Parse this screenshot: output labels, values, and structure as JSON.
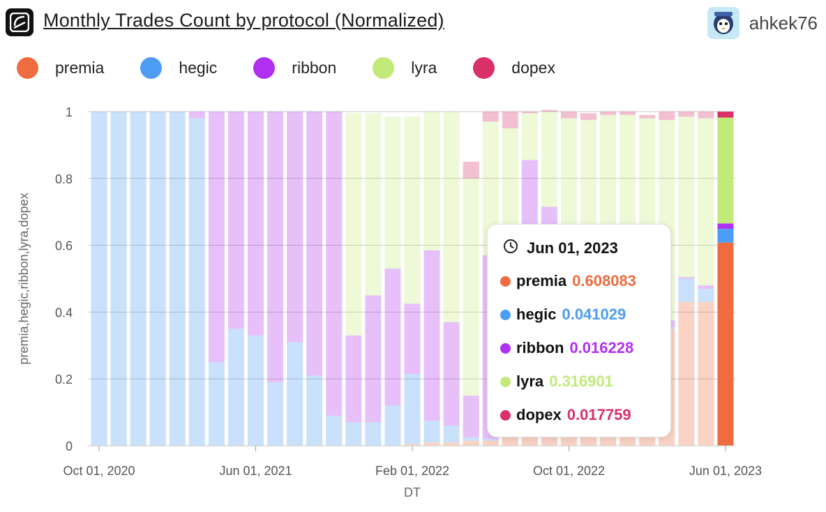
{
  "header": {
    "title": "Monthly Trades Count by protocol (Normalized)",
    "username": "ahkek76"
  },
  "icons": {
    "logo": "dune-logo-icon",
    "avatar": "user-avatar",
    "clock": "clock-icon"
  },
  "legend": [
    {
      "name": "premia",
      "color": "#ee6c40"
    },
    {
      "name": "hegic",
      "color": "#4c9df3"
    },
    {
      "name": "ribbon",
      "color": "#b12ff0"
    },
    {
      "name": "lyra",
      "color": "#c2ea7a"
    },
    {
      "name": "dopex",
      "color": "#d83067"
    }
  ],
  "tooltip": {
    "date": "Jun 01, 2023",
    "rows": [
      {
        "name": "premia",
        "value": "0.608083",
        "color": "#ee6c40"
      },
      {
        "name": "hegic",
        "value": "0.041029",
        "color": "#4c9df3"
      },
      {
        "name": "ribbon",
        "value": "0.016228",
        "color": "#b12ff0"
      },
      {
        "name": "lyra",
        "value": "0.316901",
        "color": "#c2ea7a"
      },
      {
        "name": "dopex",
        "value": "0.017759",
        "color": "#d83067"
      }
    ]
  },
  "chart_data": {
    "type": "bar",
    "stacked": true,
    "normalized": true,
    "xlabel": "DT",
    "ylabel": "premia,hegic,ribbon,lyra,dopex",
    "ylim": [
      0,
      1
    ],
    "yticks": [
      "0",
      "0.2",
      "0.4",
      "0.6",
      "0.8",
      "1"
    ],
    "xticks": [
      {
        "label": "Oct 01, 2020",
        "index": 0
      },
      {
        "label": "Jun 01, 2021",
        "index": 8
      },
      {
        "label": "Feb 01, 2022",
        "index": 16
      },
      {
        "label": "Oct 01, 2022",
        "index": 24
      },
      {
        "label": "Jun 01, 2023",
        "index": 32
      }
    ],
    "highlight_index": 32,
    "categories": [
      "2020-10",
      "2020-11",
      "2020-12",
      "2021-01",
      "2021-02",
      "2021-03",
      "2021-04",
      "2021-05",
      "2021-06",
      "2021-07",
      "2021-08",
      "2021-09",
      "2021-10",
      "2021-11",
      "2021-12",
      "2022-01",
      "2022-02",
      "2022-03",
      "2022-04",
      "2022-05",
      "2022-06",
      "2022-07",
      "2022-08",
      "2022-09",
      "2022-10",
      "2022-11",
      "2022-12",
      "2023-01",
      "2023-02",
      "2023-03",
      "2023-04",
      "2023-05",
      "2023-06"
    ],
    "series": [
      {
        "name": "premia",
        "values": [
          0,
          0,
          0,
          0,
          0,
          0,
          0,
          0,
          0,
          0,
          0,
          0,
          0,
          0,
          0,
          0,
          0.005,
          0.01,
          0.01,
          0.015,
          0.015,
          0.05,
          0.16,
          0.16,
          0.18,
          0.2,
          0.22,
          0.25,
          0.3,
          0.35,
          0.43,
          0.43,
          0.608083
        ]
      },
      {
        "name": "hegic",
        "values": [
          1,
          1,
          1,
          1,
          1,
          0.98,
          0.25,
          0.35,
          0.33,
          0.19,
          0.31,
          0.21,
          0.09,
          0.07,
          0.07,
          0.12,
          0.21,
          0.065,
          0.05,
          0.01,
          0.005,
          0.005,
          0.005,
          0.005,
          0.005,
          0.005,
          0.005,
          0.005,
          0.005,
          0.005,
          0.07,
          0.04,
          0.041029
        ]
      },
      {
        "name": "ribbon",
        "values": [
          0,
          0,
          0,
          0,
          0,
          0.02,
          0.75,
          0.65,
          0.67,
          0.81,
          0.69,
          0.79,
          0.91,
          0.26,
          0.38,
          0.41,
          0.21,
          0.51,
          0.31,
          0.125,
          0.55,
          0.12,
          0.69,
          0.55,
          0.12,
          0.1,
          0.07,
          0.04,
          0.03,
          0.02,
          0.005,
          0.01,
          0.016228
        ]
      },
      {
        "name": "lyra",
        "values": [
          0,
          0,
          0,
          0,
          0,
          0,
          0,
          0,
          0,
          0,
          0,
          0,
          0,
          0.665,
          0.545,
          0.455,
          0.56,
          0.415,
          0.63,
          0.65,
          0.4,
          0.775,
          0.14,
          0.285,
          0.675,
          0.67,
          0.695,
          0.695,
          0.645,
          0.6,
          0.48,
          0.5,
          0.316901
        ]
      },
      {
        "name": "dopex",
        "values": [
          0,
          0,
          0,
          0,
          0,
          0,
          0,
          0,
          0,
          0,
          0,
          0,
          0,
          0,
          0,
          0,
          0,
          0,
          0,
          0.05,
          0.03,
          0.05,
          0.005,
          0.005,
          0.02,
          0.02,
          0.01,
          0.01,
          0.01,
          0.025,
          0.015,
          0.02,
          0.017759
        ]
      }
    ]
  }
}
